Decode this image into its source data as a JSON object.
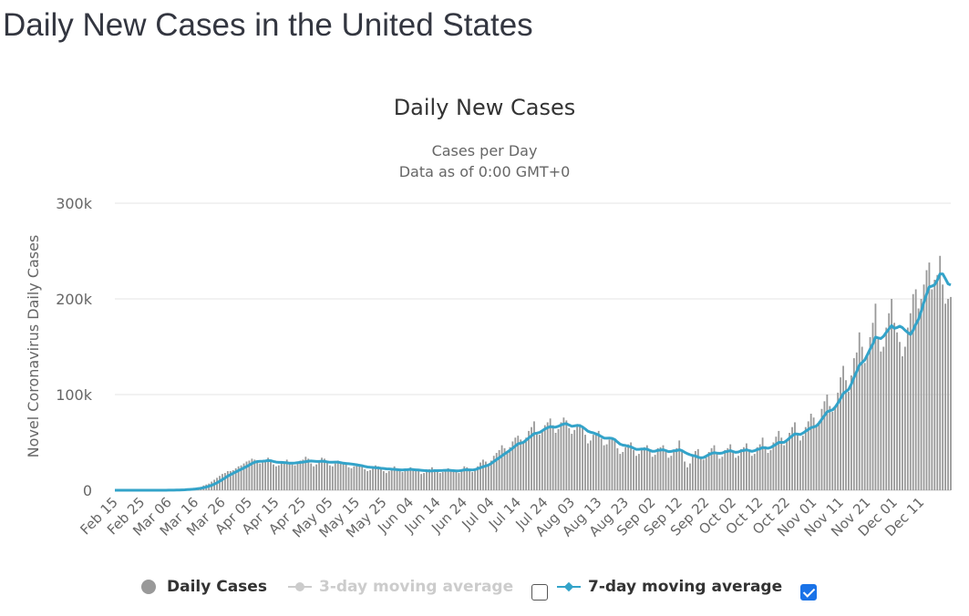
{
  "page": {
    "title": "Daily New Cases in the United States"
  },
  "legend": {
    "items": [
      {
        "label": "Daily Cases",
        "color": "#999999",
        "active": true
      },
      {
        "label": "3-day moving average",
        "color": "#cccccc",
        "active": false,
        "checkbox_checked": false
      },
      {
        "label": "7-day moving average",
        "color": "#33a3c9",
        "active": true,
        "checkbox_checked": true
      }
    ]
  },
  "chart_data": {
    "type": "bar",
    "title": "Daily New Cases",
    "subtitle": "Cases per Day",
    "subtitle2": "Data as of 0:00 GMT+0",
    "xlabel": "",
    "ylabel": "Novel Coronavirus Daily Cases",
    "ylim": [
      0,
      300000
    ],
    "yticks": [
      0,
      100000,
      200000,
      300000
    ],
    "ytick_labels": [
      "0",
      "100k",
      "200k",
      "300k"
    ],
    "grid": true,
    "legend_position": "bottom",
    "start_date": "Feb 15",
    "xtick_labels": [
      "Feb 15",
      "Feb 25",
      "Mar 06",
      "Mar 16",
      "Mar 26",
      "Apr 05",
      "Apr 15",
      "Apr 25",
      "May 05",
      "May 15",
      "May 25",
      "Jun 04",
      "Jun 14",
      "Jun 24",
      "Jul 04",
      "Jul 14",
      "Jul 24",
      "Aug 03",
      "Aug 13",
      "Aug 23",
      "Sep 02",
      "Sep 12",
      "Sep 22",
      "Oct 02",
      "Oct 12",
      "Oct 22",
      "Nov 01",
      "Nov 11",
      "Nov 21",
      "Dec 01",
      "Dec 11"
    ],
    "xtick_interval_days": 10,
    "series": [
      {
        "name": "Daily Cases",
        "type": "bar",
        "color": "#999999",
        "values": [
          0,
          0,
          0,
          0,
          0,
          0,
          0,
          0,
          0,
          0,
          0,
          0,
          0,
          0,
          20,
          30,
          40,
          60,
          80,
          100,
          120,
          200,
          300,
          400,
          600,
          700,
          1000,
          1200,
          1500,
          2000,
          2500,
          3000,
          3500,
          5000,
          6000,
          7000,
          9000,
          11000,
          13000,
          15000,
          17000,
          18000,
          20000,
          20000,
          21000,
          23000,
          25000,
          26000,
          28000,
          30000,
          31000,
          33000,
          32000,
          30000,
          28000,
          29000,
          31000,
          34000,
          32000,
          27000,
          25000,
          26000,
          29000,
          30000,
          32000,
          29000,
          27000,
          26000,
          29000,
          31000,
          32000,
          35000,
          33000,
          28000,
          25000,
          27000,
          31000,
          34000,
          33000,
          29000,
          26000,
          25000,
          28000,
          31000,
          30000,
          29000,
          27000,
          24000,
          23000,
          25000,
          28000,
          27000,
          25000,
          22000,
          20000,
          21000,
          24000,
          26000,
          25000,
          23000,
          20000,
          18000,
          20000,
          22000,
          25000,
          23000,
          21000,
          19000,
          20000,
          21000,
          24000,
          23000,
          21000,
          20000,
          17000,
          18000,
          20000,
          22000,
          24000,
          22000,
          20000,
          18000,
          19000,
          21000,
          23000,
          22000,
          20000,
          19000,
          18000,
          22000,
          25000,
          24000,
          21000,
          19000,
          22000,
          25000,
          29000,
          32000,
          30000,
          27000,
          31000,
          36000,
          39000,
          42000,
          47000,
          44000,
          40000,
          45000,
          51000,
          55000,
          57000,
          53000,
          50000,
          55000,
          62000,
          66000,
          72000,
          60000,
          58000,
          62000,
          68000,
          71000,
          75000,
          68000,
          60000,
          64000,
          71000,
          76000,
          73000,
          65000,
          59000,
          63000,
          68000,
          69000,
          66000,
          58000,
          49000,
          52000,
          58000,
          60000,
          62000,
          54000,
          47000,
          48000,
          53000,
          55000,
          52000,
          44000,
          38000,
          40000,
          45000,
          48000,
          50000,
          42000,
          36000,
          38000,
          43000,
          45000,
          47000,
          41000,
          35000,
          37000,
          44000,
          45000,
          47000,
          41000,
          34000,
          36000,
          42000,
          44000,
          52000,
          40000,
          30000,
          24000,
          28000,
          36000,
          41000,
          43000,
          35000,
          32000,
          34000,
          40000,
          44000,
          47000,
          40000,
          33000,
          35000,
          42000,
          44000,
          48000,
          41000,
          34000,
          36000,
          43000,
          45000,
          49000,
          42000,
          36000,
          38000,
          45000,
          48000,
          55000,
          46000,
          39000,
          42000,
          50000,
          56000,
          62000,
          55000,
          47000,
          52000,
          60000,
          66000,
          71000,
          60000,
          52000,
          57000,
          66000,
          72000,
          80000,
          76000,
          68000,
          72000,
          85000,
          93000,
          100000,
          88000,
          82000,
          88000,
          102000,
          118000,
          130000,
          115000,
          103000,
          120000,
          138000,
          144000,
          165000,
          150000,
          133000,
          142000,
          160000,
          175000,
          195000,
          160000,
          145000,
          150000,
          170000,
          185000,
          200000,
          175000,
          165000,
          155000,
          140000,
          150000,
          170000,
          185000,
          205000,
          210000,
          190000,
          200000,
          215000,
          230000,
          238000,
          210000,
          220000,
          225000,
          245000,
          215000,
          195000,
          200000,
          202000
        ]
      },
      {
        "name": "7-day moving average",
        "type": "line",
        "color": "#33a3c9",
        "window": 7
      }
    ]
  }
}
